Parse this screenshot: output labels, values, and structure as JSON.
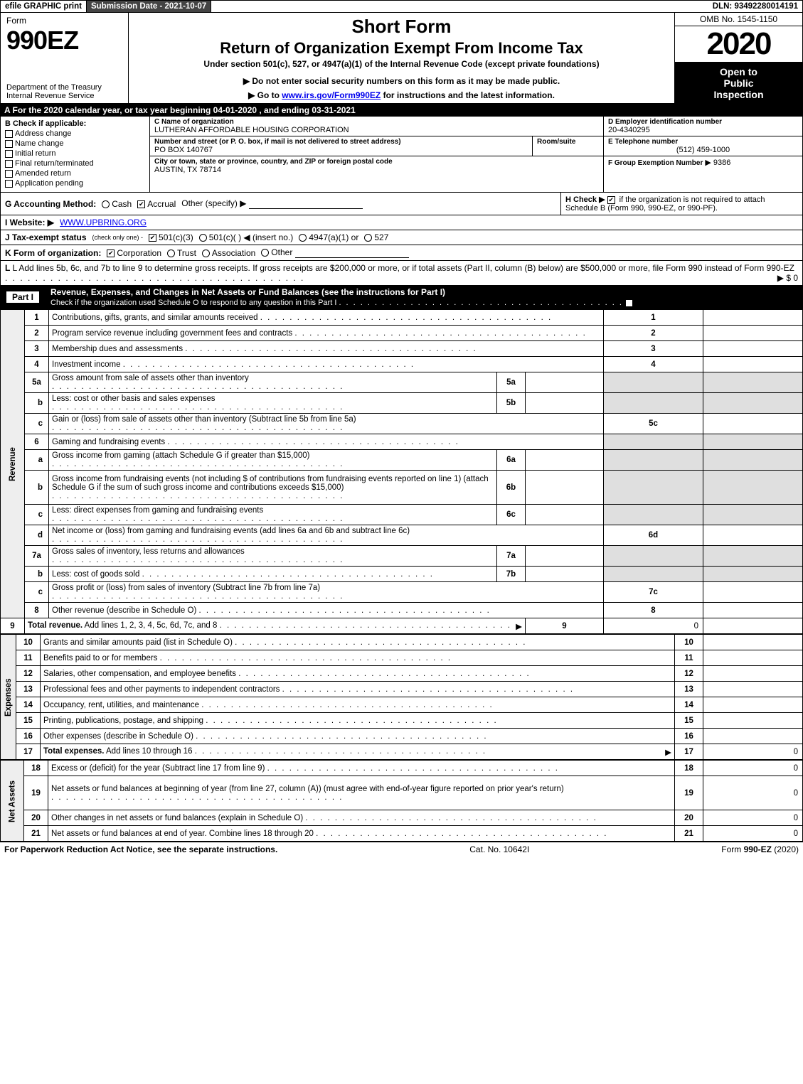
{
  "top_bar": {
    "efile": "efile GRAPHIC print",
    "submission_btn": "Submission Date - 2021-10-07",
    "dln": "DLN: 93492280014191"
  },
  "header": {
    "form_label": "Form",
    "form_code": "990EZ",
    "dept1": "Department of the Treasury",
    "dept2": "Internal Revenue Service",
    "short_form": "Short Form",
    "title": "Return of Organization Exempt From Income Tax",
    "subtitle": "Under section 501(c), 527, or 4947(a)(1) of the Internal Revenue Code (except private foundations)",
    "notice1": "▶ Do not enter social security numbers on this form as it may be made public.",
    "notice2_pre": "▶ Go to ",
    "notice2_link": "www.irs.gov/Form990EZ",
    "notice2_post": " for instructions and the latest information.",
    "omb": "OMB No. 1545-1150",
    "year": "2020",
    "inspection1": "Open to",
    "inspection2": "Public",
    "inspection3": "Inspection"
  },
  "period_bar": "A For the 2020 calendar year, or tax year beginning 04-01-2020 , and ending 03-31-2021",
  "section_b": {
    "title": "B  Check if applicable:",
    "opts": [
      "Address change",
      "Name change",
      "Initial return",
      "Final return/terminated",
      "Amended return",
      "Application pending"
    ]
  },
  "section_c": {
    "name_label": "C Name of organization",
    "name": "LUTHERAN AFFORDABLE HOUSING CORPORATION",
    "street_label": "Number and street (or P. O. box, if mail is not delivered to street address)",
    "room_label": "Room/suite",
    "street": "PO BOX 140767",
    "city_label": "City or town, state or province, country, and ZIP or foreign postal code",
    "city": "AUSTIN, TX  78714"
  },
  "section_de": {
    "d_label": "D Employer identification number",
    "d_value": "20-4340295",
    "e_label": "E Telephone number",
    "e_value": "(512) 459-1000",
    "f_label": "F Group Exemption Number",
    "f_value": "▶ 9386"
  },
  "section_g": {
    "label": "G Accounting Method:",
    "cash": "Cash",
    "accrual": "Accrual",
    "other": "Other (specify) ▶"
  },
  "section_h": {
    "text1": "H  Check ▶",
    "text2": "if the organization is not required to attach Schedule B (Form 990, 990-EZ, or 990-PF)."
  },
  "section_i": {
    "label": "I Website: ▶",
    "value": "WWW.UPBRING.ORG"
  },
  "section_j": {
    "label": "J Tax-exempt status",
    "sub": "(check only one) -",
    "opts": [
      "501(c)(3)",
      "501(c)(  ) ◀ (insert no.)",
      "4947(a)(1) or",
      "527"
    ],
    "checked": 0
  },
  "section_k": {
    "label": "K Form of organization:",
    "opts": [
      "Corporation",
      "Trust",
      "Association",
      "Other"
    ],
    "checked": 0
  },
  "section_l": {
    "text": "L Add lines 5b, 6c, and 7b to line 9 to determine gross receipts. If gross receipts are $200,000 or more, or if total assets (Part II, column (B) below) are $500,000 or more, file Form 990 instead of Form 990-EZ",
    "amount": "▶ $ 0"
  },
  "part1": {
    "label": "Part I",
    "title": "Revenue, Expenses, and Changes in Net Assets or Fund Balances (see the instructions for Part I)",
    "check_text": "Check if the organization used Schedule O to respond to any question in this Part I"
  },
  "side_labels": {
    "revenue": "Revenue",
    "expenses": "Expenses",
    "netassets": "Net Assets"
  },
  "revenue_lines": [
    {
      "n": "1",
      "desc": "Contributions, gifts, grants, and similar amounts received",
      "cell": "1",
      "val": ""
    },
    {
      "n": "2",
      "desc": "Program service revenue including government fees and contracts",
      "cell": "2",
      "val": ""
    },
    {
      "n": "3",
      "desc": "Membership dues and assessments",
      "cell": "3",
      "val": ""
    },
    {
      "n": "4",
      "desc": "Investment income",
      "cell": "4",
      "val": ""
    },
    {
      "n": "5a",
      "desc": "Gross amount from sale of assets other than inventory",
      "mini": "5a",
      "minival": "",
      "grey": true
    },
    {
      "n": "b",
      "desc": "Less: cost or other basis and sales expenses",
      "mini": "5b",
      "minival": "",
      "grey": true
    },
    {
      "n": "c",
      "desc": "Gain or (loss) from sale of assets other than inventory (Subtract line 5b from line 5a)",
      "cell": "5c",
      "val": ""
    },
    {
      "n": "6",
      "desc": "Gaming and fundraising events",
      "nocell": true,
      "grey": true
    },
    {
      "n": "a",
      "desc": "Gross income from gaming (attach Schedule G if greater than $15,000)",
      "mini": "6a",
      "minival": "",
      "grey": true
    },
    {
      "n": "b",
      "desc": "Gross income from fundraising events (not including $                   of contributions from fundraising events reported on line 1) (attach Schedule G if the sum of such gross income and contributions exceeds $15,000)",
      "mini": "6b",
      "minival": "",
      "grey": true,
      "tall": true
    },
    {
      "n": "c",
      "desc": "Less: direct expenses from gaming and fundraising events",
      "mini": "6c",
      "minival": "",
      "grey": true
    },
    {
      "n": "d",
      "desc": "Net income or (loss) from gaming and fundraising events (add lines 6a and 6b and subtract line 6c)",
      "cell": "6d",
      "val": ""
    },
    {
      "n": "7a",
      "desc": "Gross sales of inventory, less returns and allowances",
      "mini": "7a",
      "minival": "",
      "grey": true
    },
    {
      "n": "b",
      "desc": "Less: cost of goods sold",
      "mini": "7b",
      "minival": "",
      "grey": true
    },
    {
      "n": "c",
      "desc": "Gross profit or (loss) from sales of inventory (Subtract line 7b from line 7a)",
      "cell": "7c",
      "val": ""
    },
    {
      "n": "8",
      "desc": "Other revenue (describe in Schedule O)",
      "cell": "8",
      "val": ""
    },
    {
      "n": "9",
      "desc": "Total revenue. Add lines 1, 2, 3, 4, 5c, 6d, 7c, and 8",
      "cell": "9",
      "val": "0",
      "bold": true,
      "arrow": true
    }
  ],
  "expense_lines": [
    {
      "n": "10",
      "desc": "Grants and similar amounts paid (list in Schedule O)",
      "cell": "10",
      "val": ""
    },
    {
      "n": "11",
      "desc": "Benefits paid to or for members",
      "cell": "11",
      "val": ""
    },
    {
      "n": "12",
      "desc": "Salaries, other compensation, and employee benefits",
      "cell": "12",
      "val": ""
    },
    {
      "n": "13",
      "desc": "Professional fees and other payments to independent contractors",
      "cell": "13",
      "val": ""
    },
    {
      "n": "14",
      "desc": "Occupancy, rent, utilities, and maintenance",
      "cell": "14",
      "val": ""
    },
    {
      "n": "15",
      "desc": "Printing, publications, postage, and shipping",
      "cell": "15",
      "val": ""
    },
    {
      "n": "16",
      "desc": "Other expenses (describe in Schedule O)",
      "cell": "16",
      "val": ""
    },
    {
      "n": "17",
      "desc": "Total expenses. Add lines 10 through 16",
      "cell": "17",
      "val": "0",
      "bold": true,
      "arrow": true
    }
  ],
  "netasset_lines": [
    {
      "n": "18",
      "desc": "Excess or (deficit) for the year (Subtract line 17 from line 9)",
      "cell": "18",
      "val": "0"
    },
    {
      "n": "19",
      "desc": "Net assets or fund balances at beginning of year (from line 27, column (A)) (must agree with end-of-year figure reported on prior year's return)",
      "cell": "19",
      "val": "0",
      "tall": true
    },
    {
      "n": "20",
      "desc": "Other changes in net assets or fund balances (explain in Schedule O)",
      "cell": "20",
      "val": "0"
    },
    {
      "n": "21",
      "desc": "Net assets or fund balances at end of year. Combine lines 18 through 20",
      "cell": "21",
      "val": "0"
    }
  ],
  "footer": {
    "left": "For Paperwork Reduction Act Notice, see the separate instructions.",
    "mid": "Cat. No. 10642I",
    "right": "Form 990-EZ (2020)"
  }
}
